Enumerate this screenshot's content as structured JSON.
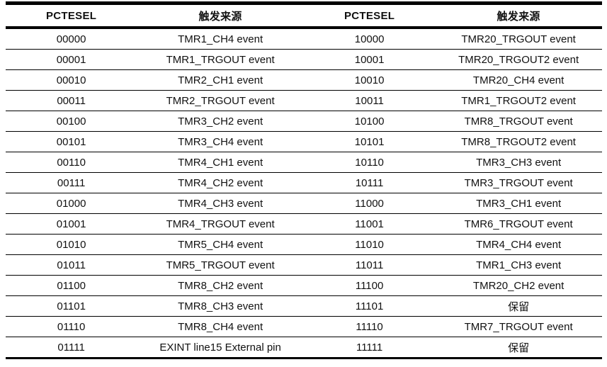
{
  "table": {
    "headers": [
      "PCTESEL",
      "触发来源",
      "PCTESEL",
      "触发来源"
    ],
    "rows": [
      [
        "00000",
        "TMR1_CH4 event",
        "10000",
        "TMR20_TRGOUT event"
      ],
      [
        "00001",
        "TMR1_TRGOUT event",
        "10001",
        "TMR20_TRGOUT2 event"
      ],
      [
        "00010",
        "TMR2_CH1 event",
        "10010",
        "TMR20_CH4 event"
      ],
      [
        "00011",
        "TMR2_TRGOUT event",
        "10011",
        "TMR1_TRGOUT2 event"
      ],
      [
        "00100",
        "TMR3_CH2 event",
        "10100",
        "TMR8_TRGOUT event"
      ],
      [
        "00101",
        "TMR3_CH4 event",
        "10101",
        "TMR8_TRGOUT2 event"
      ],
      [
        "00110",
        "TMR4_CH1 event",
        "10110",
        "TMR3_CH3 event"
      ],
      [
        "00111",
        "TMR4_CH2 event",
        "10111",
        "TMR3_TRGOUT event"
      ],
      [
        "01000",
        "TMR4_CH3 event",
        "11000",
        "TMR3_CH1 event"
      ],
      [
        "01001",
        "TMR4_TRGOUT event",
        "11001",
        "TMR6_TRGOUT event"
      ],
      [
        "01010",
        "TMR5_CH4 event",
        "11010",
        "TMR4_CH4 event"
      ],
      [
        "01011",
        "TMR5_TRGOUT event",
        "11011",
        "TMR1_CH3 event"
      ],
      [
        "01100",
        "TMR8_CH2 event",
        "11100",
        "TMR20_CH2 event"
      ],
      [
        "01101",
        "TMR8_CH3 event",
        "11101",
        "保留"
      ],
      [
        "01110",
        "TMR8_CH4 event",
        "11110",
        "TMR7_TRGOUT event"
      ],
      [
        "01111",
        "EXINT line15 External pin",
        "11111",
        "保留"
      ]
    ],
    "colors": {
      "border": "#000000",
      "text": "#111111",
      "background": "#ffffff"
    }
  }
}
